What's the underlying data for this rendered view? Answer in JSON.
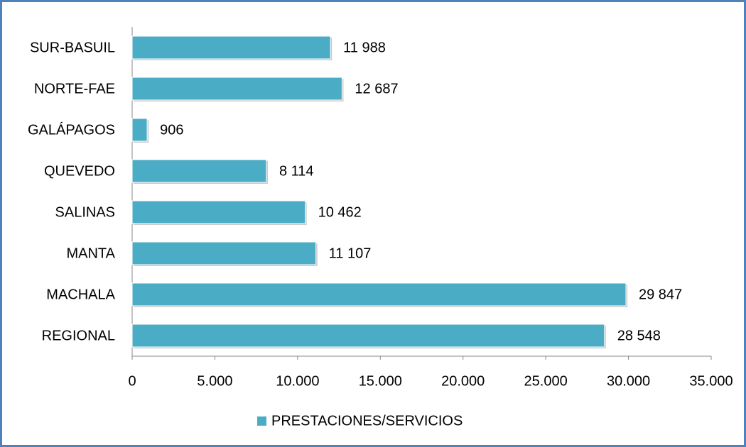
{
  "chart_data": {
    "type": "hbar",
    "categories": [
      "SUR-BASUIL",
      "NORTE-FAE",
      "GALÁPAGOS",
      "QUEVEDO",
      "SALINAS",
      "MANTA",
      "MACHALA",
      "REGIONAL"
    ],
    "series": [
      {
        "name": "PRESTACIONES/SERVICIOS",
        "color": "#4bacc6",
        "values": [
          11988,
          12687,
          906,
          8114,
          10462,
          11107,
          29847,
          28548
        ],
        "value_labels": [
          "11 988",
          "12 687",
          "906",
          "8 114",
          "10 462",
          "11 107",
          "29 847",
          "28 548"
        ]
      }
    ],
    "xlim": [
      0,
      35000
    ],
    "xticks": [
      0,
      {
        "value": 5000,
        "label": "5.000"
      },
      {
        "value": 10000,
        "label": "10.000"
      },
      {
        "value": 15000,
        "label": "15.000"
      },
      {
        "value": 20000,
        "label": "20.000"
      },
      {
        "value": 25000,
        "label": "25.000"
      },
      {
        "value": 30000,
        "label": "30.000"
      },
      {
        "value": 35000,
        "label": "35.000"
      }
    ],
    "legend": "bottom"
  }
}
